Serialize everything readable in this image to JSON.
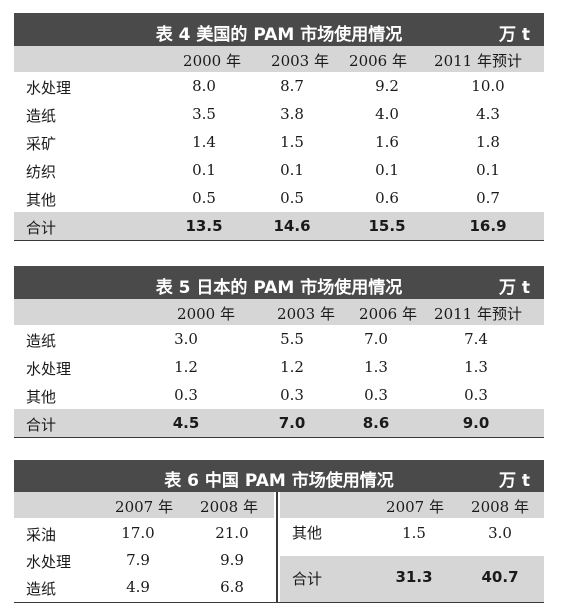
{
  "table4": {
    "title": "表 4   美国的 PAM 市场使用情况",
    "unit": "万 t",
    "headers": [
      "2000 年",
      "2003 年",
      "2006 年",
      "2011 年预计"
    ],
    "rows": [
      {
        "label": "水处理",
        "values": [
          "8.0",
          "8.7",
          "9.2",
          "10.0"
        ]
      },
      {
        "label": "造纸",
        "values": [
          "3.5",
          "3.8",
          "4.0",
          "4.3"
        ]
      },
      {
        "label": "采矿",
        "values": [
          "1.4",
          "1.5",
          "1.6",
          "1.8"
        ]
      },
      {
        "label": "纺织",
        "values": [
          "0.1",
          "0.1",
          "0.1",
          "0.1"
        ]
      },
      {
        "label": "其他",
        "values": [
          "0.5",
          "0.5",
          "0.6",
          "0.7"
        ]
      }
    ],
    "total": {
      "label": "合计",
      "values": [
        "13.5",
        "14.6",
        "15.5",
        "16.9"
      ]
    }
  },
  "table5": {
    "title": "表 5   日本的 PAM 市场使用情况",
    "unit": "万 t",
    "headers": [
      "2000 年",
      "2003 年",
      "2006 年",
      "2011 年预计"
    ],
    "rows": [
      {
        "label": "造纸",
        "values": [
          "3.0",
          "5.5",
          "7.0",
          "7.4"
        ]
      },
      {
        "label": "水处理",
        "values": [
          "1.2",
          "1.2",
          "1.3",
          "1.3"
        ]
      },
      {
        "label": "其他",
        "values": [
          "0.3",
          "0.3",
          "0.3",
          "0.3"
        ]
      }
    ],
    "total": {
      "label": "合计",
      "values": [
        "4.5",
        "7.0",
        "8.6",
        "9.0"
      ]
    }
  },
  "table6": {
    "title": "表 6   中国 PAM 市场使用情况",
    "unit": "万 t",
    "headers": [
      "2007 年",
      "2008 年"
    ],
    "left_rows": [
      {
        "label": "采油",
        "values": [
          "17.0",
          "21.0"
        ]
      },
      {
        "label": "水处理",
        "values": [
          "7.9",
          "9.9"
        ]
      },
      {
        "label": "造纸",
        "values": [
          "4.9",
          "6.8"
        ]
      }
    ],
    "right_rows": [
      {
        "label": "其他",
        "values": [
          "1.5",
          "3.0"
        ]
      }
    ],
    "total": {
      "label": "合计",
      "values": [
        "31.3",
        "40.7"
      ]
    }
  }
}
